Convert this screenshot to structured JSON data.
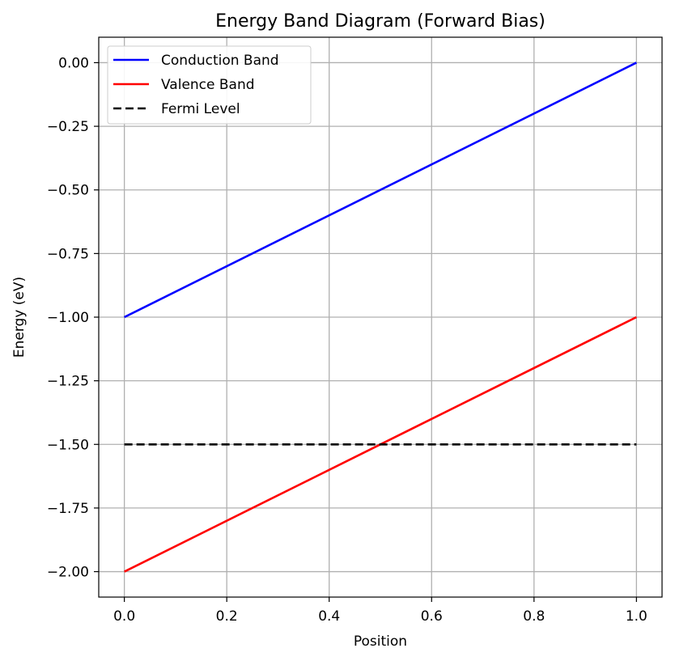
{
  "chart_data": {
    "type": "line",
    "title": "Energy Band Diagram (Forward Bias)",
    "xlabel": "Position",
    "ylabel": "Energy (eV)",
    "xlim": [
      -0.05,
      1.05
    ],
    "ylim": [
      -2.1,
      0.1
    ],
    "xticks": [
      0.0,
      0.2,
      0.4,
      0.6,
      0.8,
      1.0
    ],
    "xtick_labels": [
      "0.0",
      "0.2",
      "0.4",
      "0.6",
      "0.8",
      "1.0"
    ],
    "yticks": [
      0.0,
      -0.25,
      -0.5,
      -0.75,
      -1.0,
      -1.25,
      -1.5,
      -1.75,
      -2.0
    ],
    "ytick_labels": [
      "0.00",
      "−0.25",
      "−0.50",
      "−0.75",
      "−1.00",
      "−1.25",
      "−1.50",
      "−1.75",
      "−2.00"
    ],
    "grid": true,
    "legend_position": "top-left",
    "series": [
      {
        "name": "Conduction Band",
        "color": "#0000ff",
        "style": "solid",
        "x": [
          0.0,
          1.0
        ],
        "y": [
          -1.0,
          0.0
        ]
      },
      {
        "name": "Valence Band",
        "color": "#ff0000",
        "style": "solid",
        "x": [
          0.0,
          1.0
        ],
        "y": [
          -2.0,
          -1.0
        ]
      },
      {
        "name": "Fermi Level",
        "color": "#000000",
        "style": "dashed",
        "x": [
          0.0,
          1.0
        ],
        "y": [
          -1.5,
          -1.5
        ]
      }
    ]
  }
}
